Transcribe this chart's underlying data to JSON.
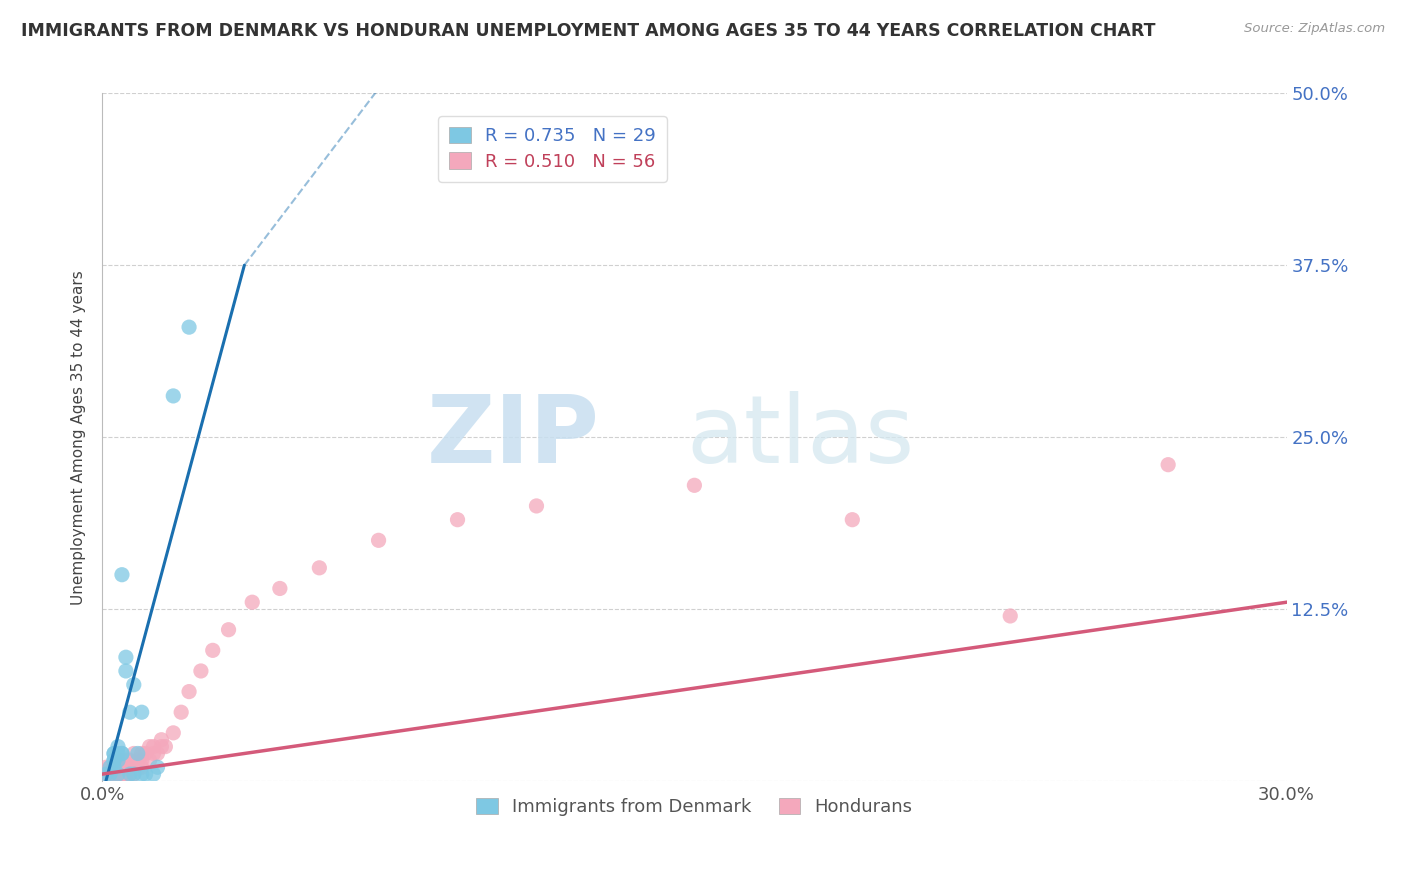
{
  "title": "IMMIGRANTS FROM DENMARK VS HONDURAN UNEMPLOYMENT AMONG AGES 35 TO 44 YEARS CORRELATION CHART",
  "source": "Source: ZipAtlas.com",
  "ylabel": "Unemployment Among Ages 35 to 44 years",
  "xlim": [
    0.0,
    0.3
  ],
  "ylim": [
    -0.02,
    0.52
  ],
  "plot_ylim": [
    0.0,
    0.5
  ],
  "yticks": [
    0.0,
    0.125,
    0.25,
    0.375,
    0.5
  ],
  "ytick_labels": [
    "",
    "12.5%",
    "25.0%",
    "37.5%",
    "50.0%"
  ],
  "background_color": "#ffffff",
  "grid_color": "#d0d0d0",
  "denmark_color": "#7ec8e3",
  "honduras_color": "#f4a8bc",
  "denmark_line_color": "#1a6faf",
  "honduras_line_color": "#d45a7a",
  "denmark_scatter": {
    "x": [
      0.001,
      0.002,
      0.002,
      0.003,
      0.003,
      0.003,
      0.003,
      0.003,
      0.004,
      0.004,
      0.004,
      0.004,
      0.005,
      0.005,
      0.005,
      0.006,
      0.006,
      0.007,
      0.007,
      0.008,
      0.008,
      0.009,
      0.01,
      0.01,
      0.011,
      0.013,
      0.014,
      0.018,
      0.022
    ],
    "y": [
      0.005,
      0.005,
      0.01,
      0.01,
      0.015,
      0.015,
      0.02,
      0.02,
      0.005,
      0.015,
      0.02,
      0.025,
      0.15,
      0.02,
      0.02,
      0.08,
      0.09,
      0.005,
      0.05,
      0.005,
      0.07,
      0.02,
      0.005,
      0.05,
      0.005,
      0.005,
      0.01,
      0.28,
      0.33
    ]
  },
  "honduras_scatter": {
    "x": [
      0.001,
      0.001,
      0.002,
      0.002,
      0.002,
      0.003,
      0.003,
      0.003,
      0.003,
      0.004,
      0.004,
      0.004,
      0.004,
      0.005,
      0.005,
      0.005,
      0.005,
      0.006,
      0.006,
      0.006,
      0.007,
      0.007,
      0.007,
      0.008,
      0.008,
      0.008,
      0.009,
      0.009,
      0.01,
      0.01,
      0.01,
      0.011,
      0.012,
      0.012,
      0.013,
      0.013,
      0.014,
      0.015,
      0.015,
      0.016,
      0.018,
      0.02,
      0.022,
      0.025,
      0.028,
      0.032,
      0.038,
      0.045,
      0.055,
      0.07,
      0.09,
      0.11,
      0.15,
      0.19,
      0.23,
      0.27
    ],
    "y": [
      0.005,
      0.01,
      0.005,
      0.005,
      0.01,
      0.005,
      0.005,
      0.005,
      0.01,
      0.005,
      0.005,
      0.005,
      0.01,
      0.005,
      0.005,
      0.01,
      0.015,
      0.005,
      0.01,
      0.015,
      0.005,
      0.01,
      0.015,
      0.005,
      0.01,
      0.02,
      0.01,
      0.015,
      0.01,
      0.015,
      0.02,
      0.02,
      0.015,
      0.025,
      0.02,
      0.025,
      0.02,
      0.025,
      0.03,
      0.025,
      0.035,
      0.05,
      0.065,
      0.08,
      0.095,
      0.11,
      0.13,
      0.14,
      0.155,
      0.175,
      0.19,
      0.2,
      0.215,
      0.19,
      0.12,
      0.23
    ]
  },
  "denmark_line_solid": {
    "x": [
      0.0,
      0.036
    ],
    "y": [
      -0.01,
      0.375
    ]
  },
  "denmark_line_dashed": {
    "x": [
      0.036,
      0.175
    ],
    "y": [
      0.375,
      0.9
    ]
  },
  "honduras_line": {
    "x": [
      0.0,
      0.3
    ],
    "y": [
      0.005,
      0.13
    ]
  },
  "legend_r": [
    {
      "label": "R = 0.735",
      "n": "N = 29",
      "color": "#7ec8e3"
    },
    {
      "label": "R = 0.510",
      "n": "N = 56",
      "color": "#f4a8bc"
    }
  ],
  "legend_footer": [
    "Immigrants from Denmark",
    "Hondurans"
  ],
  "r_text_color": "#4472c4",
  "n_text_color": "#27ae60"
}
